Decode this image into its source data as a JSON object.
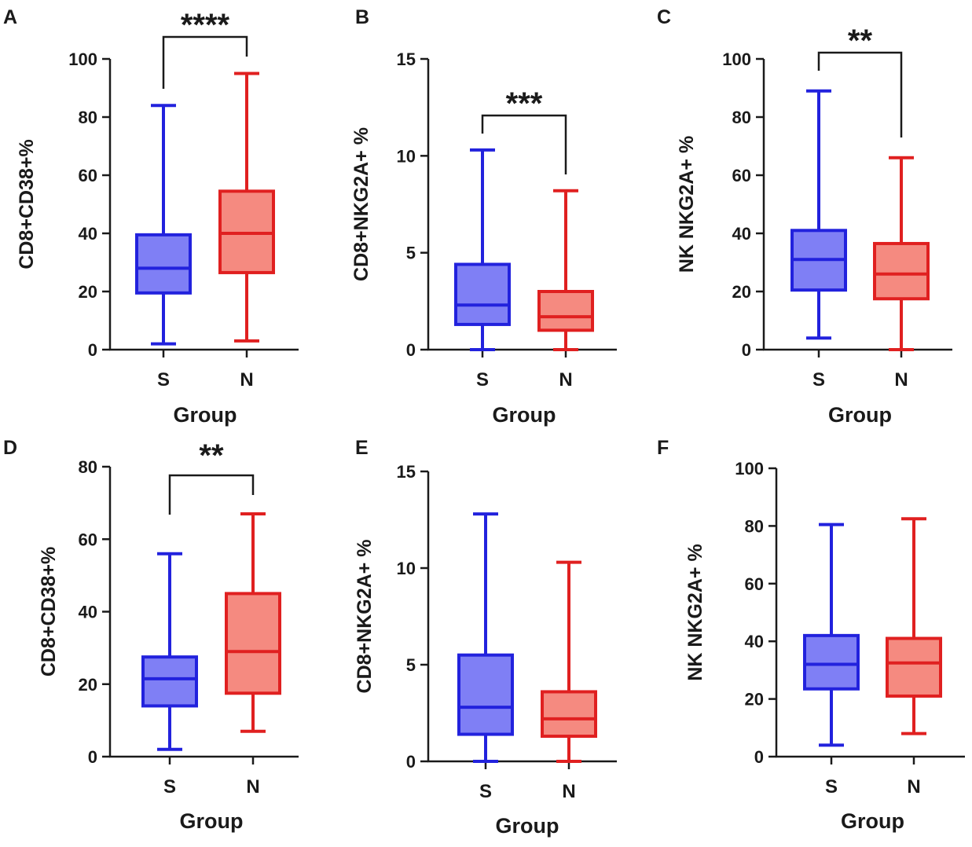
{
  "colors": {
    "S": "#2222dd",
    "S_fill": "#7f7ff5",
    "N": "#e02020",
    "N_fill": "#f58a80"
  },
  "chart_data": [
    {
      "type": "box",
      "panel": "A",
      "ylabel": "CD8+CD38+%",
      "xlabel": "Group",
      "ylim": [
        0,
        100
      ],
      "yticks": [
        0,
        20,
        40,
        60,
        80,
        100
      ],
      "categories": [
        "S",
        "N"
      ],
      "series": [
        {
          "name": "S",
          "min": 2,
          "q1": 19.5,
          "median": 28,
          "q3": 39.5,
          "max": 84
        },
        {
          "name": "N",
          "min": 3,
          "q1": 26.5,
          "median": 40,
          "q3": 54.5,
          "max": 95
        }
      ],
      "significance": "****"
    },
    {
      "type": "box",
      "panel": "B",
      "ylabel": "CD8+NKG2A+ %",
      "xlabel": "Group",
      "ylim": [
        0,
        15
      ],
      "yticks": [
        0,
        5,
        10,
        15
      ],
      "categories": [
        "S",
        "N"
      ],
      "series": [
        {
          "name": "S",
          "min": 0,
          "q1": 1.3,
          "median": 2.3,
          "q3": 4.4,
          "max": 10.3
        },
        {
          "name": "N",
          "min": 0,
          "q1": 1.0,
          "median": 1.7,
          "q3": 3.0,
          "max": 8.2
        }
      ],
      "significance": "***"
    },
    {
      "type": "box",
      "panel": "C",
      "ylabel": "NK NKG2A+ %",
      "xlabel": "Group",
      "ylim": [
        0,
        100
      ],
      "yticks": [
        0,
        20,
        40,
        60,
        80,
        100
      ],
      "categories": [
        "S",
        "N"
      ],
      "series": [
        {
          "name": "S",
          "min": 4,
          "q1": 20.5,
          "median": 31,
          "q3": 41,
          "max": 89
        },
        {
          "name": "N",
          "min": 0,
          "q1": 17.5,
          "median": 26,
          "q3": 36.5,
          "max": 66
        }
      ],
      "significance": "**"
    },
    {
      "type": "box",
      "panel": "D",
      "ylabel": "CD8+CD38+%",
      "xlabel": "Group",
      "ylim": [
        0,
        80
      ],
      "yticks": [
        0,
        20,
        40,
        60,
        80
      ],
      "categories": [
        "S",
        "N"
      ],
      "series": [
        {
          "name": "S",
          "min": 2,
          "q1": 14,
          "median": 21.5,
          "q3": 27.5,
          "max": 56
        },
        {
          "name": "N",
          "min": 7,
          "q1": 17.5,
          "median": 29,
          "q3": 45,
          "max": 67
        }
      ],
      "significance": "**"
    },
    {
      "type": "box",
      "panel": "E",
      "ylabel": "CD8+NKG2A+ %",
      "xlabel": "Group",
      "ylim": [
        0,
        15
      ],
      "yticks": [
        0,
        5,
        10,
        15
      ],
      "categories": [
        "S",
        "N"
      ],
      "series": [
        {
          "name": "S",
          "min": 0,
          "q1": 1.4,
          "median": 2.8,
          "q3": 5.5,
          "max": 12.8
        },
        {
          "name": "N",
          "min": 0,
          "q1": 1.3,
          "median": 2.2,
          "q3": 3.6,
          "max": 10.3
        }
      ],
      "significance": ""
    },
    {
      "type": "box",
      "panel": "F",
      "ylabel": "NK NKG2A+ %",
      "xlabel": "Group",
      "ylim": [
        0,
        100
      ],
      "yticks": [
        0,
        20,
        40,
        60,
        80,
        100
      ],
      "categories": [
        "S",
        "N"
      ],
      "series": [
        {
          "name": "S",
          "min": 4,
          "q1": 23.5,
          "median": 32,
          "q3": 42,
          "max": 80.5
        },
        {
          "name": "N",
          "min": 8,
          "q1": 21,
          "median": 32.5,
          "q3": 41,
          "max": 82.5
        }
      ],
      "significance": ""
    }
  ]
}
